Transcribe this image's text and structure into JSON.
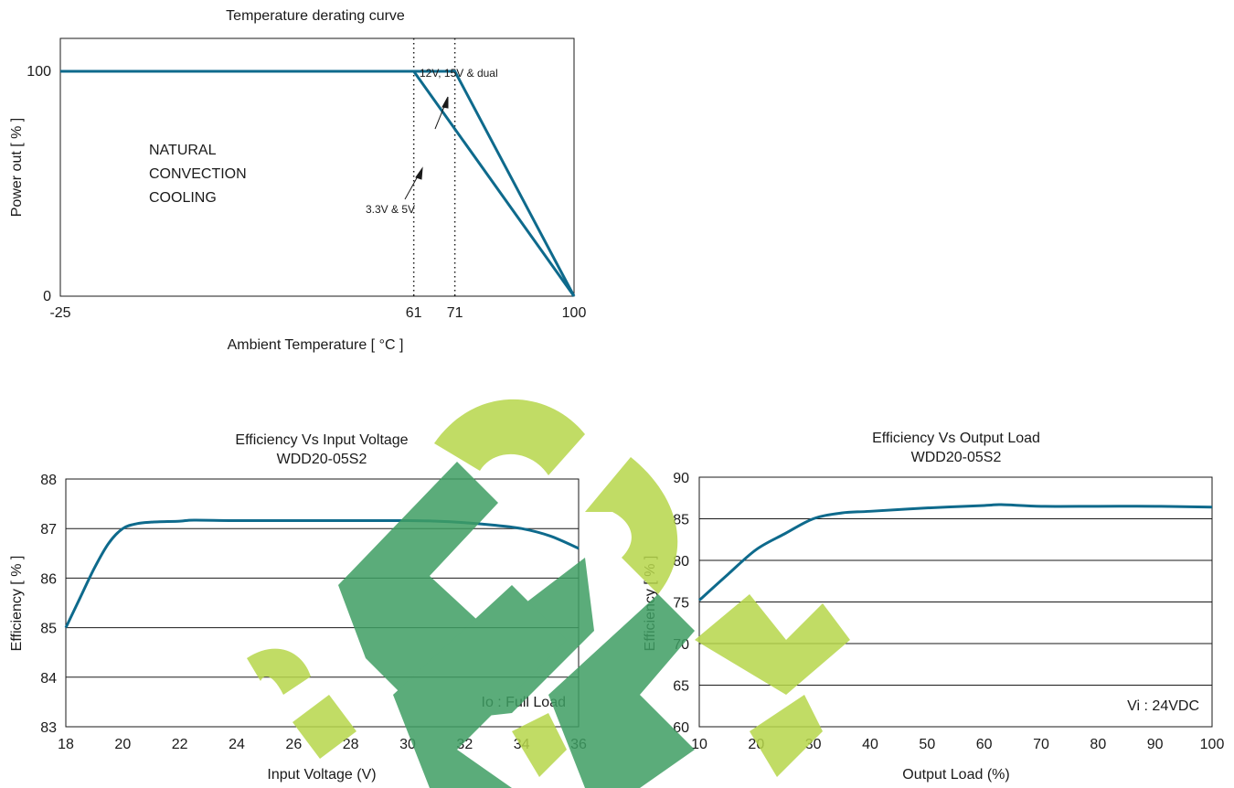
{
  "chart_data": [
    {
      "type": "line",
      "title": "Temperature derating curve",
      "xlabel": "Ambient Temperature [ °C ]",
      "ylabel": "Power out [ % ]",
      "x_ticks": [
        "-25",
        "61",
        "71",
        "100"
      ],
      "y_ticks": [
        "0",
        "100"
      ],
      "xlim": [
        -25,
        100
      ],
      "ylim": [
        0,
        100
      ],
      "grid": false,
      "vlines": [
        61,
        71
      ],
      "annotations": {
        "region": [
          "NATURAL",
          "CONVECTION",
          "COOLING"
        ],
        "series_a": "12V, 15V & dual",
        "series_b": "3.3V  &  5V"
      },
      "series": [
        {
          "name": "12V, 15V & dual",
          "x": [
            -25,
            71,
            100
          ],
          "y": [
            100,
            100,
            0
          ]
        },
        {
          "name": "3.3V  &  5V",
          "x": [
            -25,
            61,
            100
          ],
          "y": [
            100,
            100,
            0
          ]
        }
      ],
      "color": "#0e6a8c"
    },
    {
      "type": "line",
      "title": "Efficiency Vs Input Voltage",
      "subtitle": "WDD20-05S2",
      "xlabel": "Input Voltage (V)",
      "ylabel": "Efficiency [ % ]",
      "x_ticks": [
        "18",
        "20",
        "22",
        "24",
        "26",
        "28",
        "30",
        "32",
        "34",
        "36"
      ],
      "y_ticks": [
        "83",
        "84",
        "85",
        "86",
        "87",
        "88"
      ],
      "xlim": [
        18,
        36
      ],
      "ylim": [
        83,
        88
      ],
      "grid": true,
      "note": "Io : Full Load",
      "series": [
        {
          "x": [
            18,
            18.5,
            19,
            19.5,
            20,
            20.5,
            21,
            22,
            22.5,
            24,
            26,
            28,
            30,
            31,
            32,
            33,
            34,
            35,
            36
          ],
          "y": [
            85.0,
            85.6,
            86.2,
            86.7,
            87.0,
            87.1,
            87.13,
            87.15,
            87.17,
            87.16,
            87.16,
            87.16,
            87.16,
            87.15,
            87.12,
            87.07,
            87.0,
            86.85,
            86.6
          ]
        }
      ],
      "color": "#0e6a8c"
    },
    {
      "type": "line",
      "title": "Efficiency Vs Output Load",
      "subtitle": "WDD20-05S2",
      "xlabel": "Output Load (%)",
      "ylabel": "Efficiency [ % ]",
      "x_ticks": [
        "10",
        "20",
        "30",
        "40",
        "50",
        "60",
        "70",
        "80",
        "90",
        "100"
      ],
      "y_ticks": [
        "60",
        "65",
        "70",
        "75",
        "80",
        "85",
        "90"
      ],
      "xlim": [
        10,
        100
      ],
      "ylim": [
        60,
        90
      ],
      "grid": true,
      "note": "Vi : 24VDC",
      "series": [
        {
          "x": [
            10,
            15,
            20,
            25,
            30,
            35,
            40,
            50,
            60,
            63,
            70,
            80,
            90,
            100
          ],
          "y": [
            75.2,
            78.3,
            81.3,
            83.2,
            85.0,
            85.7,
            85.9,
            86.3,
            86.6,
            86.7,
            86.5,
            86.5,
            86.5,
            86.4
          ]
        }
      ],
      "color": "#0e6a8c"
    }
  ]
}
